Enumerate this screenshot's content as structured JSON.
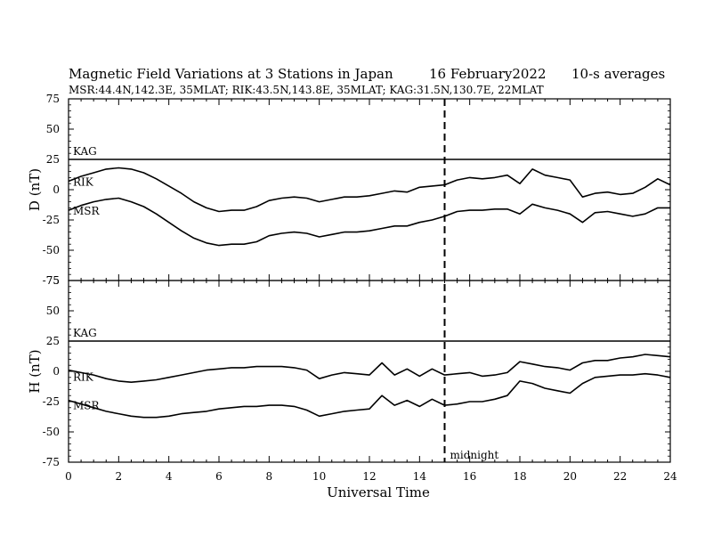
{
  "header": {
    "title": "Magnetic Field Variations at 3 Stations in Japan",
    "date": "16 February2022",
    "averaging": "10-s averages",
    "stations": "MSR:44.4N,142.3E, 35MLAT;  RIK:43.5N,143.8E, 35MLAT;  KAG:31.5N,130.7E, 22MLAT"
  },
  "chart_data": [
    {
      "type": "line",
      "ylabel": "D (nT)",
      "xlabel": "",
      "xlim": [
        0,
        24
      ],
      "ylim": [
        -75,
        75
      ],
      "yticks": [
        75,
        50,
        25,
        0,
        -25,
        -50,
        -75
      ],
      "series": [
        {
          "name": "KAG",
          "x": [
            0,
            24
          ],
          "y": [
            25,
            25
          ]
        },
        {
          "name": "RIK",
          "x": [
            0,
            0.5,
            1,
            1.5,
            2,
            2.5,
            3,
            3.5,
            4,
            4.5,
            5,
            5.5,
            6,
            6.5,
            7,
            7.5,
            8,
            8.5,
            9,
            9.5,
            10,
            10.5,
            11,
            11.5,
            12,
            12.5,
            13,
            13.5,
            14,
            14.5,
            15,
            15.5,
            16,
            16.5,
            17,
            17.5,
            18,
            18.5,
            19,
            19.5,
            20,
            20.5,
            21,
            21.5,
            22,
            22.5,
            23,
            23.5,
            24
          ],
          "y": [
            7,
            11,
            14,
            17,
            18,
            17,
            14,
            9,
            3,
            -3,
            -10,
            -15,
            -18,
            -17,
            -17,
            -14,
            -9,
            -7,
            -6,
            -7,
            -10,
            -8,
            -6,
            -6,
            -5,
            -3,
            -1,
            -2,
            2,
            3,
            4,
            8,
            10,
            9,
            10,
            12,
            5,
            17,
            12,
            10,
            8,
            -6,
            -3,
            -2,
            -4,
            -3,
            2,
            9,
            4
          ]
        },
        {
          "name": "MSR",
          "x": [
            0,
            0.5,
            1,
            1.5,
            2,
            2.5,
            3,
            3.5,
            4,
            4.5,
            5,
            5.5,
            6,
            6.5,
            7,
            7.5,
            8,
            8.5,
            9,
            9.5,
            10,
            10.5,
            11,
            11.5,
            12,
            12.5,
            13,
            13.5,
            14,
            14.5,
            15,
            15.5,
            16,
            16.5,
            17,
            17.5,
            18,
            18.5,
            19,
            19.5,
            20,
            20.5,
            21,
            21.5,
            22,
            22.5,
            23,
            23.5,
            24
          ],
          "y": [
            -17,
            -13,
            -10,
            -8,
            -7,
            -10,
            -14,
            -20,
            -27,
            -34,
            -40,
            -44,
            -46,
            -45,
            -45,
            -43,
            -38,
            -36,
            -35,
            -36,
            -39,
            -37,
            -35,
            -35,
            -34,
            -32,
            -30,
            -30,
            -27,
            -25,
            -22,
            -18,
            -17,
            -17,
            -16,
            -16,
            -20,
            -12,
            -15,
            -17,
            -20,
            -27,
            -19,
            -18,
            -20,
            -22,
            -20,
            -15,
            -15
          ]
        }
      ]
    },
    {
      "type": "line",
      "ylabel": "H (nT)",
      "xlabel": "Universal Time",
      "xlim": [
        0,
        24
      ],
      "ylim": [
        -75,
        75
      ],
      "yticks": [
        75,
        50,
        25,
        0,
        -25,
        -50,
        -75
      ],
      "xticks": [
        0,
        2,
        4,
        6,
        8,
        10,
        12,
        14,
        16,
        18,
        20,
        22,
        24
      ],
      "series": [
        {
          "name": "KAG",
          "x": [
            0,
            24
          ],
          "y": [
            25,
            25
          ]
        },
        {
          "name": "RIK",
          "x": [
            0,
            0.5,
            1,
            1.5,
            2,
            2.5,
            3,
            3.5,
            4,
            4.5,
            5,
            5.5,
            6,
            6.5,
            7,
            7.5,
            8,
            8.5,
            9,
            9.5,
            10,
            10.5,
            11,
            11.5,
            12,
            12.5,
            13,
            13.5,
            14,
            14.5,
            15,
            15.5,
            16,
            16.5,
            17,
            17.5,
            18,
            18.5,
            19,
            19.5,
            20,
            20.5,
            21,
            21.5,
            22,
            22.5,
            23,
            23.5,
            24
          ],
          "y": [
            1,
            -1,
            -3,
            -6,
            -8,
            -9,
            -8,
            -7,
            -5,
            -3,
            -1,
            1,
            2,
            3,
            3,
            4,
            4,
            4,
            3,
            1,
            -6,
            -3,
            -1,
            -2,
            -3,
            7,
            -3,
            2,
            -4,
            2,
            -3,
            -2,
            -1,
            -4,
            -3,
            -1,
            8,
            6,
            4,
            3,
            1,
            7,
            9,
            9,
            11,
            12,
            14,
            13,
            12
          ]
        },
        {
          "name": "MSR",
          "x": [
            0,
            0.5,
            1,
            1.5,
            2,
            2.5,
            3,
            3.5,
            4,
            4.5,
            5,
            5.5,
            6,
            6.5,
            7,
            7.5,
            8,
            8.5,
            9,
            9.5,
            10,
            10.5,
            11,
            11.5,
            12,
            12.5,
            13,
            13.5,
            14,
            14.5,
            15,
            15.5,
            16,
            16.5,
            17,
            17.5,
            18,
            18.5,
            19,
            19.5,
            20,
            20.5,
            21,
            21.5,
            22,
            22.5,
            23,
            23.5,
            24
          ],
          "y": [
            -24,
            -27,
            -30,
            -33,
            -35,
            -37,
            -38,
            -38,
            -37,
            -35,
            -34,
            -33,
            -31,
            -30,
            -29,
            -29,
            -28,
            -28,
            -29,
            -32,
            -37,
            -35,
            -33,
            -32,
            -31,
            -20,
            -28,
            -24,
            -29,
            -23,
            -28,
            -27,
            -25,
            -25,
            -23,
            -20,
            -8,
            -10,
            -14,
            -16,
            -18,
            -10,
            -5,
            -4,
            -3,
            -3,
            -2,
            -3,
            -5
          ]
        }
      ]
    }
  ],
  "annotations": {
    "midnight": {
      "label": "midnight",
      "x": 15
    }
  }
}
